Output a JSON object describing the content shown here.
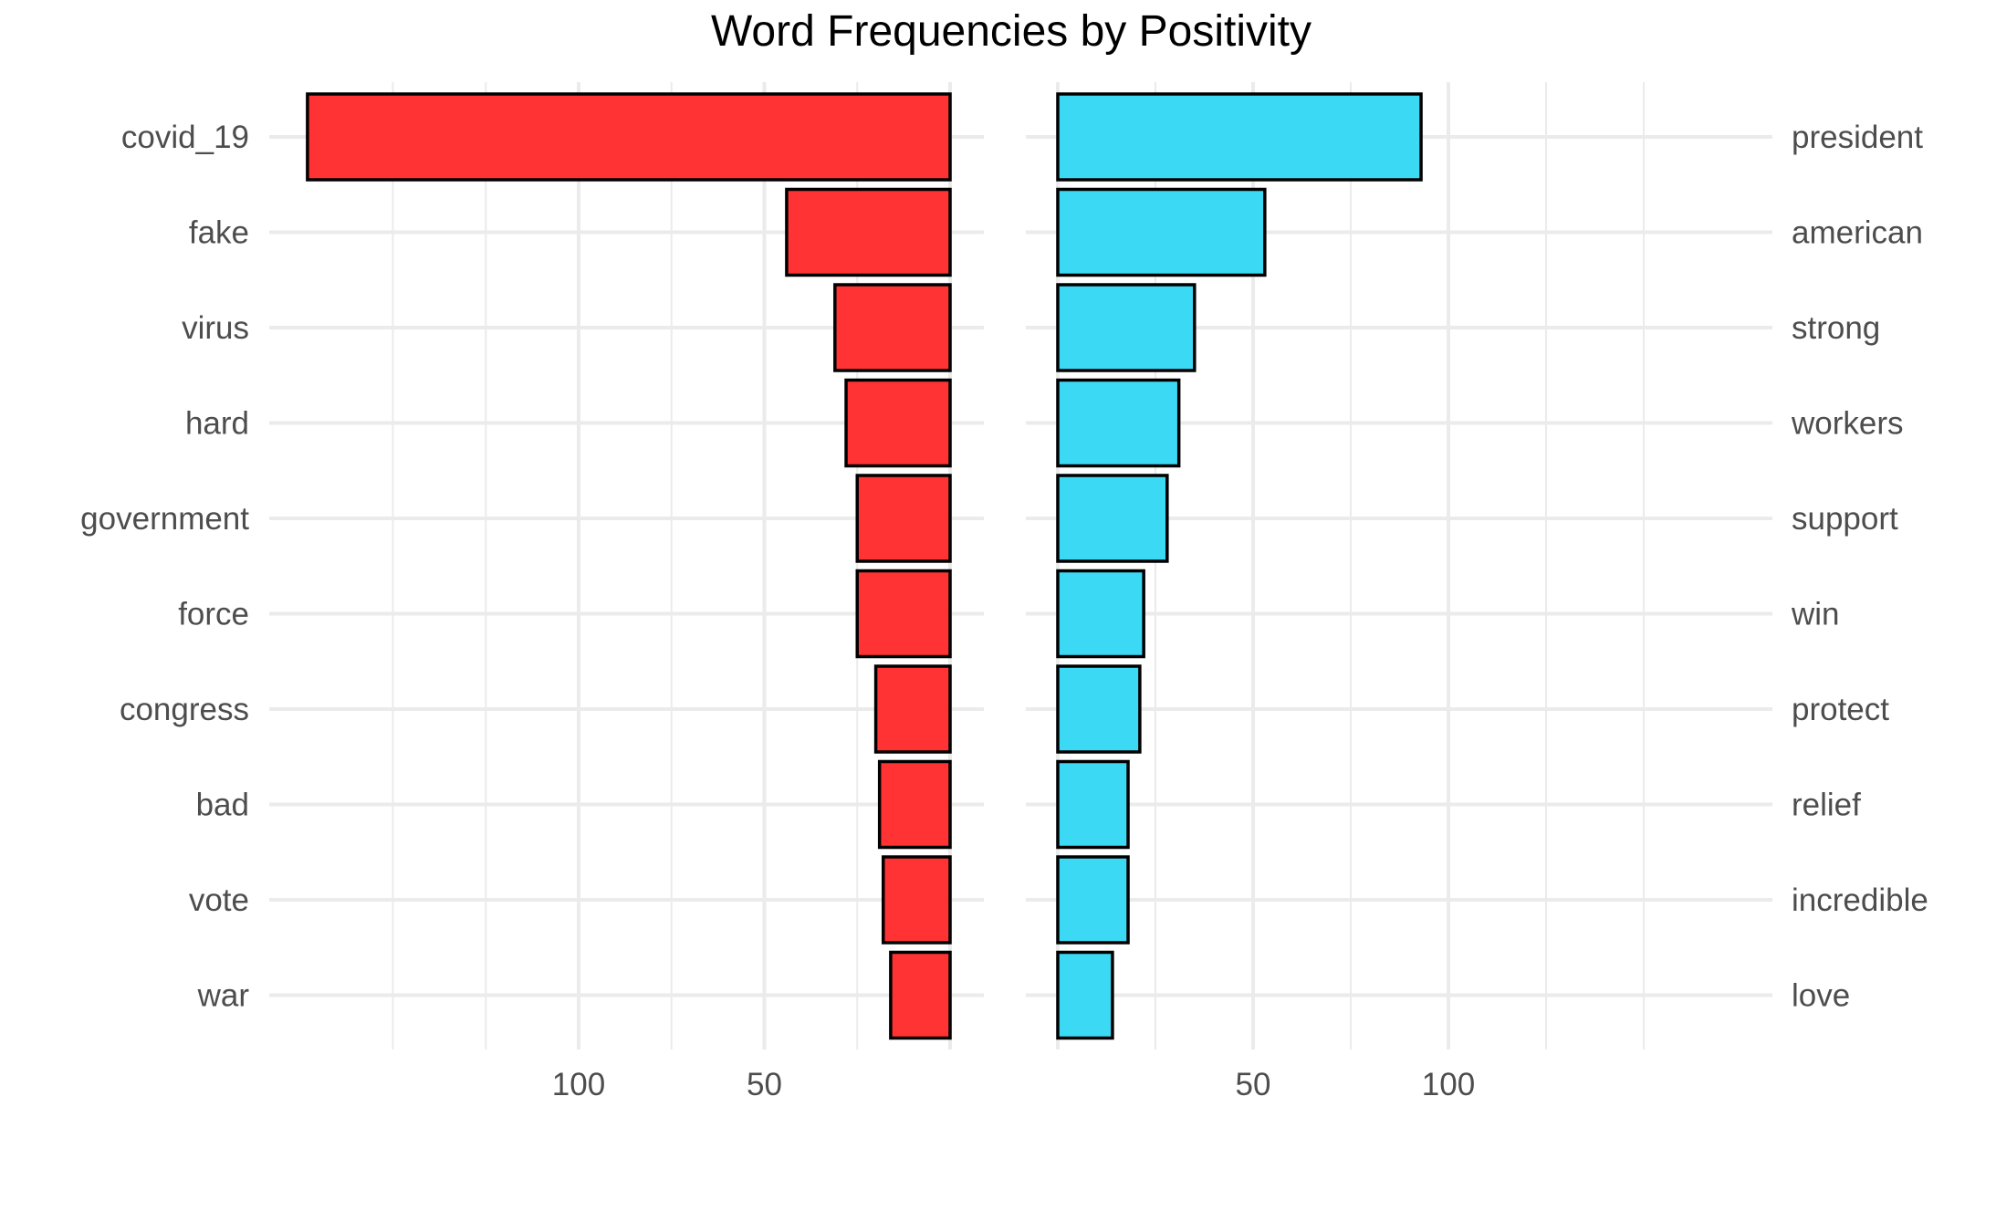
{
  "chart_data": {
    "type": "bar",
    "title": "Word Frequencies by Positivity",
    "orientation": "horizontal-mirrored",
    "grid": true,
    "legend": "none",
    "panels": [
      {
        "name": "negative",
        "direction": "left",
        "fill": "#FF3333",
        "xlim": [
          0,
          175
        ],
        "ticks": [
          100,
          50
        ],
        "tick_labels": [
          "100",
          "50"
        ],
        "minor_ticks": [
          25,
          75,
          125,
          150
        ],
        "categories": [
          "covid_19",
          "fake",
          "virus",
          "hard",
          "government",
          "force",
          "congress",
          "bad",
          "vote",
          "war"
        ],
        "values": [
          173,
          44,
          31,
          28,
          25,
          25,
          20,
          19,
          18,
          16
        ]
      },
      {
        "name": "positive",
        "direction": "right",
        "fill": "#3CD9F5",
        "xlim": [
          0,
          175
        ],
        "ticks": [
          50,
          100
        ],
        "tick_labels": [
          "50",
          "100"
        ],
        "minor_ticks": [
          25,
          75,
          125,
          150
        ],
        "categories": [
          "president",
          "american",
          "strong",
          "workers",
          "support",
          "win",
          "protect",
          "relief",
          "incredible",
          "love"
        ],
        "values": [
          93,
          53,
          35,
          31,
          28,
          22,
          21,
          18,
          18,
          14
        ]
      }
    ]
  }
}
